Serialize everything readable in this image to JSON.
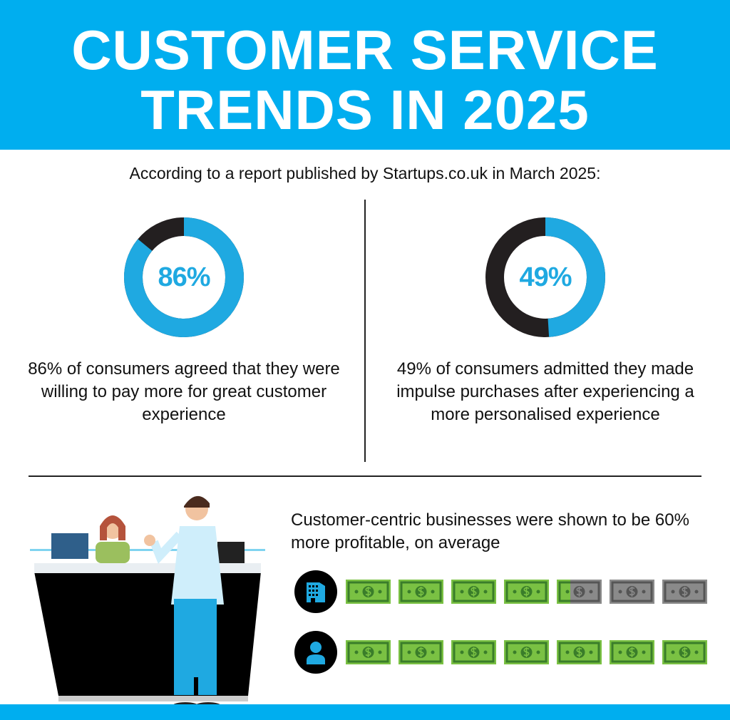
{
  "header": {
    "title_line1": "CUSTOMER SERVICE",
    "title_line2": "TRENDS IN 2025"
  },
  "subtitle": "According to a report published by Startups.co.uk in March 2025:",
  "colors": {
    "brand": "#00aeef",
    "donut_fill": "#1fa9e1",
    "donut_rest": "#231f20",
    "bill_green": "#7ac143",
    "bill_grey": "#8a8a8a"
  },
  "chart_data": [
    {
      "type": "pie",
      "variant": "donut",
      "values": [
        86,
        14
      ],
      "label": "86%",
      "description": "86% of consumers agreed that they were willing to pay more for great customer experience"
    },
    {
      "type": "pie",
      "variant": "donut",
      "values": [
        49,
        51
      ],
      "label": "49%",
      "description": "49% of consumers admitted they made impulse purchases after experiencing a more personalised experience"
    },
    {
      "type": "pictogram",
      "title": "Customer-centric businesses were shown to be 60% more profitable, on average",
      "rows": [
        {
          "icon": "building-icon",
          "filled": 4.3,
          "total": 7
        },
        {
          "icon": "person-icon",
          "filled": 7,
          "total": 7
        }
      ]
    }
  ]
}
